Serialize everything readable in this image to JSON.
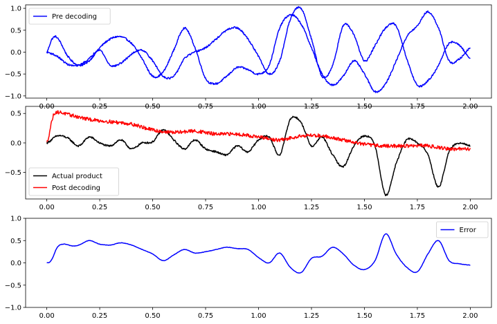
{
  "chart_data": [
    {
      "type": "line",
      "x_range": [
        0.0,
        2.0
      ],
      "xlim": [
        -0.1,
        2.1
      ],
      "ylim": [
        -1.05,
        1.08
      ],
      "xticks": [
        0.0,
        0.25,
        0.5,
        0.75,
        1.0,
        1.25,
        1.5,
        1.75,
        2.0
      ],
      "xtick_labels": [
        "0.00",
        "0.25",
        "0.50",
        "0.75",
        "1.00",
        "1.25",
        "1.50",
        "1.75",
        "2.00"
      ],
      "yticks": [
        -1.0,
        -0.5,
        0.0,
        0.5,
        1.0
      ],
      "ytick_labels": [
        "−1.0",
        "−0.5",
        "0.0",
        "0.5",
        "1.0"
      ],
      "legend_position": "upper-left",
      "grid": false,
      "series": [
        {
          "name": "Pre decoding",
          "color": "#0000ff",
          "legend": true,
          "noise": 0.02,
          "x": [
            0.0,
            0.025,
            0.05,
            0.1,
            0.15,
            0.2,
            0.25,
            0.3,
            0.35,
            0.4,
            0.45,
            0.5,
            0.55,
            0.6,
            0.65,
            0.7,
            0.75,
            0.8,
            0.85,
            0.9,
            0.95,
            1.0,
            1.05,
            1.1,
            1.15,
            1.2,
            1.25,
            1.3,
            1.35,
            1.4,
            1.45,
            1.5,
            1.55,
            1.6,
            1.65,
            1.7,
            1.75,
            1.8,
            1.85,
            1.9,
            1.95,
            2.0
          ],
          "y": [
            0.0,
            0.3,
            0.32,
            -0.1,
            -0.3,
            -0.2,
            0.1,
            0.3,
            0.35,
            0.2,
            -0.15,
            -0.55,
            -0.45,
            0.05,
            0.55,
            0.1,
            -0.6,
            -0.72,
            -0.55,
            -0.35,
            -0.4,
            -0.5,
            -0.3,
            0.55,
            0.85,
            0.65,
            0.1,
            -0.5,
            -0.75,
            -0.55,
            -0.2,
            -0.5,
            -0.9,
            -0.72,
            -0.2,
            0.35,
            0.6,
            0.92,
            0.55,
            -0.2,
            -0.15,
            0.1
          ]
        },
        {
          "name": "",
          "color": "#0000ff",
          "legend": false,
          "noise": 0.02,
          "x": [
            0.0,
            0.05,
            0.1,
            0.15,
            0.2,
            0.25,
            0.3,
            0.35,
            0.4,
            0.45,
            0.5,
            0.55,
            0.6,
            0.65,
            0.7,
            0.75,
            0.8,
            0.85,
            0.9,
            0.95,
            1.0,
            1.05,
            1.1,
            1.15,
            1.2,
            1.25,
            1.3,
            1.35,
            1.4,
            1.45,
            1.5,
            1.55,
            1.6,
            1.65,
            1.7,
            1.75,
            1.8,
            1.85,
            1.9,
            1.95,
            2.0
          ],
          "y": [
            0.0,
            -0.1,
            -0.28,
            -0.3,
            -0.15,
            0.05,
            -0.3,
            -0.25,
            -0.05,
            0.05,
            -0.2,
            -0.55,
            -0.55,
            -0.15,
            0.0,
            0.1,
            0.3,
            0.5,
            0.55,
            0.3,
            -0.1,
            -0.5,
            -0.2,
            0.75,
            1.0,
            0.3,
            -0.55,
            -0.3,
            0.6,
            0.4,
            -0.2,
            0.15,
            0.55,
            0.6,
            -0.15,
            -0.75,
            -0.65,
            -0.3,
            0.2,
            0.15,
            -0.15
          ]
        }
      ]
    },
    {
      "type": "line",
      "x_range": [
        0.0,
        2.0
      ],
      "xlim": [
        -0.1,
        2.1
      ],
      "ylim": [
        -0.95,
        0.62
      ],
      "xticks": [
        0.0,
        0.25,
        0.5,
        0.75,
        1.0,
        1.25,
        1.5,
        1.75,
        2.0
      ],
      "xtick_labels": [
        "0.00",
        "0.25",
        "0.50",
        "0.75",
        "1.00",
        "1.25",
        "1.50",
        "1.75",
        "2.00"
      ],
      "yticks": [
        -0.5,
        0.0,
        0.5
      ],
      "ytick_labels": [
        "−0.5",
        "0.0",
        "0.5"
      ],
      "legend_position": "lower-left",
      "grid": false,
      "series": [
        {
          "name": "Actual product",
          "color": "#000000",
          "legend": true,
          "noise": 0.015,
          "x": [
            0.0,
            0.05,
            0.1,
            0.15,
            0.2,
            0.25,
            0.3,
            0.35,
            0.4,
            0.45,
            0.5,
            0.55,
            0.6,
            0.65,
            0.7,
            0.75,
            0.8,
            0.85,
            0.9,
            0.95,
            1.0,
            1.05,
            1.1,
            1.15,
            1.2,
            1.25,
            1.3,
            1.35,
            1.4,
            1.45,
            1.5,
            1.55,
            1.6,
            1.65,
            1.7,
            1.75,
            1.8,
            1.85,
            1.9,
            1.95,
            2.0
          ],
          "y": [
            0.0,
            0.12,
            0.08,
            -0.05,
            0.1,
            0.0,
            -0.05,
            0.05,
            -0.1,
            0.0,
            0.02,
            0.22,
            0.05,
            -0.1,
            0.05,
            -0.1,
            -0.15,
            -0.2,
            -0.05,
            -0.15,
            0.05,
            0.1,
            -0.2,
            0.4,
            0.35,
            -0.05,
            0.1,
            -0.2,
            -0.4,
            -0.05,
            0.12,
            -0.05,
            -0.88,
            -0.35,
            0.05,
            0.0,
            -0.2,
            -0.75,
            -0.15,
            0.0,
            -0.05
          ]
        },
        {
          "name": "Post decoding",
          "color": "#ff0000",
          "legend": true,
          "noise": 0.03,
          "x": [
            0.0,
            0.03,
            0.05,
            0.1,
            0.2,
            0.3,
            0.4,
            0.5,
            0.6,
            0.7,
            0.8,
            0.9,
            1.0,
            1.1,
            1.2,
            1.3,
            1.4,
            1.5,
            1.6,
            1.7,
            1.8,
            1.9,
            2.0
          ],
          "y": [
            0.0,
            0.45,
            0.52,
            0.48,
            0.4,
            0.36,
            0.32,
            0.22,
            0.18,
            0.2,
            0.15,
            0.15,
            0.1,
            0.05,
            0.12,
            0.12,
            0.05,
            -0.02,
            -0.05,
            -0.05,
            -0.05,
            -0.1,
            -0.1
          ]
        }
      ]
    },
    {
      "type": "line",
      "x_range": [
        0.0,
        2.0
      ],
      "xlim": [
        -0.1,
        2.1
      ],
      "ylim": [
        -1.0,
        1.0
      ],
      "xticks": [
        0.0,
        0.25,
        0.5,
        0.75,
        1.0,
        1.25,
        1.5,
        1.75,
        2.0
      ],
      "xtick_labels": [
        "0.00",
        "0.25",
        "0.50",
        "0.75",
        "1.00",
        "1.25",
        "1.50",
        "1.75",
        "2.00"
      ],
      "yticks": [
        -1.0,
        -0.5,
        0.0,
        0.5,
        1.0
      ],
      "ytick_labels": [
        "−1.0",
        "−0.5",
        "0.0",
        "0.5",
        "1.0"
      ],
      "legend_position": "upper-right",
      "grid": false,
      "series": [
        {
          "name": "Error",
          "color": "#0000ff",
          "legend": true,
          "noise": 0.004,
          "x": [
            0.0,
            0.02,
            0.05,
            0.08,
            0.12,
            0.15,
            0.2,
            0.25,
            0.3,
            0.35,
            0.4,
            0.45,
            0.5,
            0.55,
            0.6,
            0.65,
            0.7,
            0.75,
            0.8,
            0.85,
            0.9,
            0.95,
            1.0,
            1.05,
            1.1,
            1.15,
            1.2,
            1.25,
            1.3,
            1.35,
            1.4,
            1.45,
            1.5,
            1.55,
            1.6,
            1.65,
            1.7,
            1.75,
            1.8,
            1.85,
            1.9,
            1.95,
            2.0
          ],
          "y": [
            0.0,
            0.05,
            0.35,
            0.42,
            0.38,
            0.4,
            0.5,
            0.42,
            0.4,
            0.45,
            0.4,
            0.3,
            0.2,
            0.05,
            0.18,
            0.3,
            0.22,
            0.25,
            0.3,
            0.35,
            0.32,
            0.3,
            0.12,
            0.0,
            0.22,
            -0.1,
            -0.22,
            0.1,
            0.15,
            0.35,
            0.2,
            -0.05,
            -0.15,
            0.05,
            0.65,
            0.2,
            -0.1,
            -0.2,
            0.2,
            0.5,
            0.05,
            -0.02,
            -0.05
          ]
        }
      ]
    }
  ]
}
